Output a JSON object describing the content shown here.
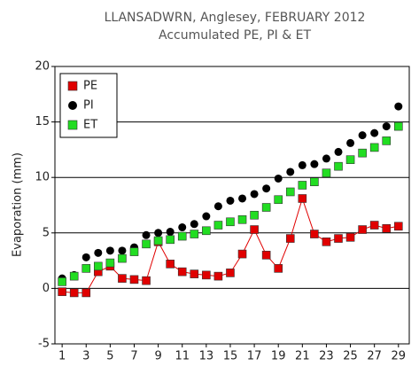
{
  "chart_data": {
    "type": "scatter",
    "title": "LLANSADWRN, Anglesey, FEBRUARY 2012",
    "subtitle": "Accumulated PE,  PI & ET",
    "y_label": "Evaporation (mm)",
    "x": [
      1,
      2,
      3,
      4,
      5,
      6,
      7,
      8,
      9,
      10,
      11,
      12,
      13,
      14,
      15,
      16,
      17,
      18,
      19,
      20,
      21,
      22,
      23,
      24,
      25,
      26,
      27,
      28,
      29
    ],
    "series": [
      {
        "name": "PE",
        "color": "#e00000",
        "marker": "square",
        "line": true,
        "values": [
          -0.3,
          -0.4,
          -0.4,
          1.5,
          2.0,
          0.9,
          0.8,
          0.7,
          4.2,
          2.2,
          1.5,
          1.3,
          1.2,
          1.1,
          1.4,
          3.1,
          5.3,
          3.0,
          1.8,
          4.5,
          8.1,
          4.9,
          4.2,
          4.5,
          4.6,
          5.3,
          5.7,
          5.4,
          5.6
        ]
      },
      {
        "name": "PI",
        "color": "#000000",
        "marker": "circle",
        "line": false,
        "values": [
          0.9,
          1.2,
          2.8,
          3.2,
          3.4,
          3.4,
          3.7,
          4.8,
          5.0,
          5.1,
          5.5,
          5.8,
          6.5,
          7.4,
          7.9,
          8.1,
          8.5,
          9.0,
          9.9,
          10.5,
          11.1,
          11.2,
          11.7,
          12.3,
          13.1,
          13.8,
          14.0,
          14.6,
          16.4
        ]
      },
      {
        "name": "ET",
        "color": "#22dd22",
        "marker": "square",
        "line": false,
        "values": [
          0.6,
          1.1,
          1.8,
          2.0,
          2.3,
          2.7,
          3.3,
          4.0,
          4.3,
          4.4,
          4.7,
          4.9,
          5.2,
          5.7,
          6.0,
          6.2,
          6.6,
          7.3,
          8.0,
          8.7,
          9.3,
          9.6,
          10.4,
          11.0,
          11.6,
          12.2,
          12.7,
          13.3,
          14.6
        ]
      }
    ],
    "xlim": [
      0.4,
      29.9
    ],
    "xticks": [
      1,
      3,
      5,
      7,
      9,
      11,
      13,
      15,
      17,
      19,
      21,
      23,
      25,
      27,
      29
    ],
    "ylim": [
      -5,
      20
    ],
    "yticks": [
      -5,
      0,
      5,
      10,
      15,
      20
    ],
    "grid": true,
    "legend": "top-left"
  }
}
